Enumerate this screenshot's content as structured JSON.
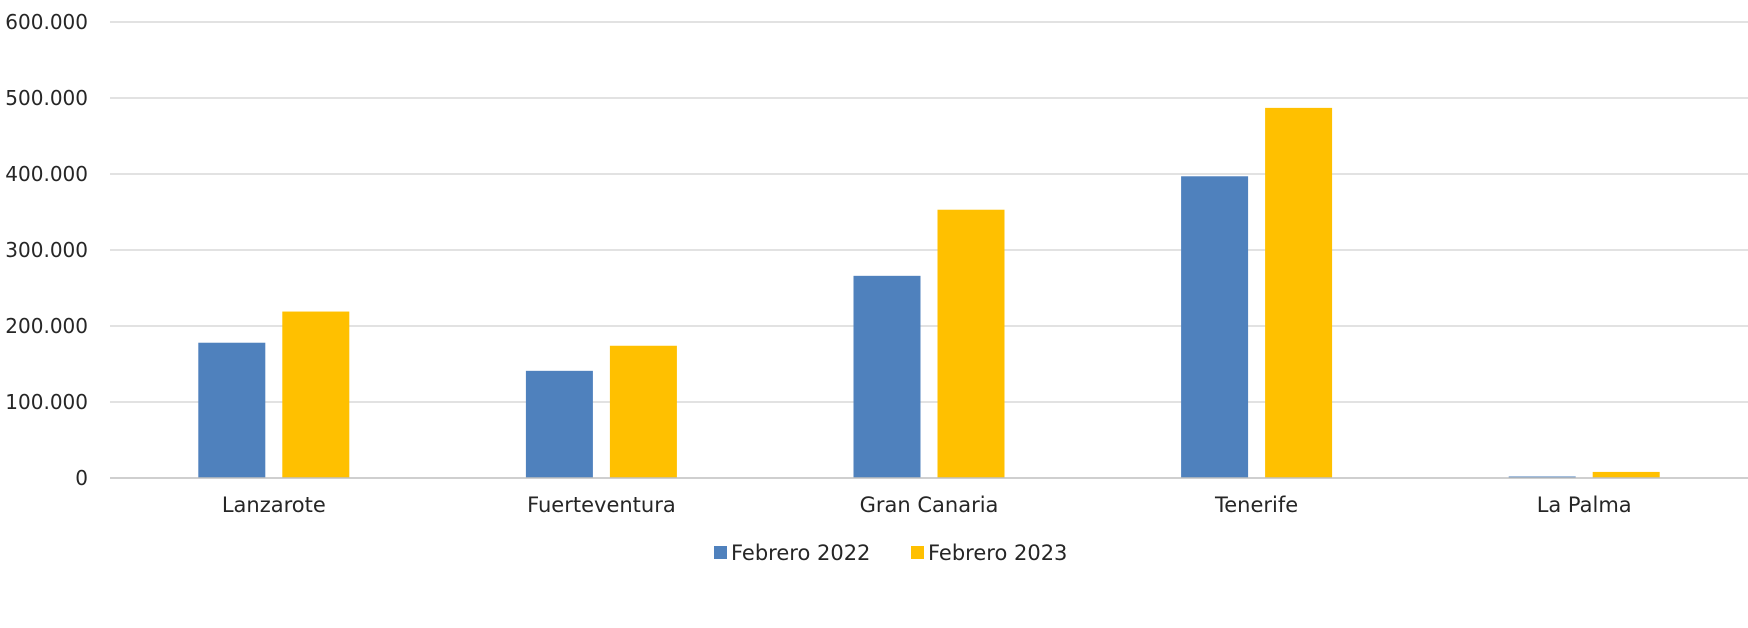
{
  "chart_data": {
    "type": "bar",
    "categories": [
      "Lanzarote",
      "Fuerteventura",
      "Gran Canaria",
      "Tenerife",
      "La Palma"
    ],
    "series": [
      {
        "name": "Febrero 2022",
        "color": "#4f81bd",
        "values": [
          178000,
          141000,
          266000,
          397000,
          2000
        ]
      },
      {
        "name": "Febrero 2023",
        "color": "#ffc000",
        "values": [
          219000,
          174000,
          353000,
          487000,
          8000
        ]
      }
    ],
    "y_ticks": [
      {
        "value": 0,
        "label": "0"
      },
      {
        "value": 100000,
        "label": "100.000"
      },
      {
        "value": 200000,
        "label": "200.000"
      },
      {
        "value": 300000,
        "label": "300.000"
      },
      {
        "value": 400000,
        "label": "400.000"
      },
      {
        "value": 500000,
        "label": "500.000"
      },
      {
        "value": 600000,
        "label": "600.000"
      }
    ],
    "ylim": [
      0,
      600000
    ],
    "grid": true,
    "legend_position": "bottom",
    "title": "",
    "xlabel": "",
    "ylabel": ""
  }
}
